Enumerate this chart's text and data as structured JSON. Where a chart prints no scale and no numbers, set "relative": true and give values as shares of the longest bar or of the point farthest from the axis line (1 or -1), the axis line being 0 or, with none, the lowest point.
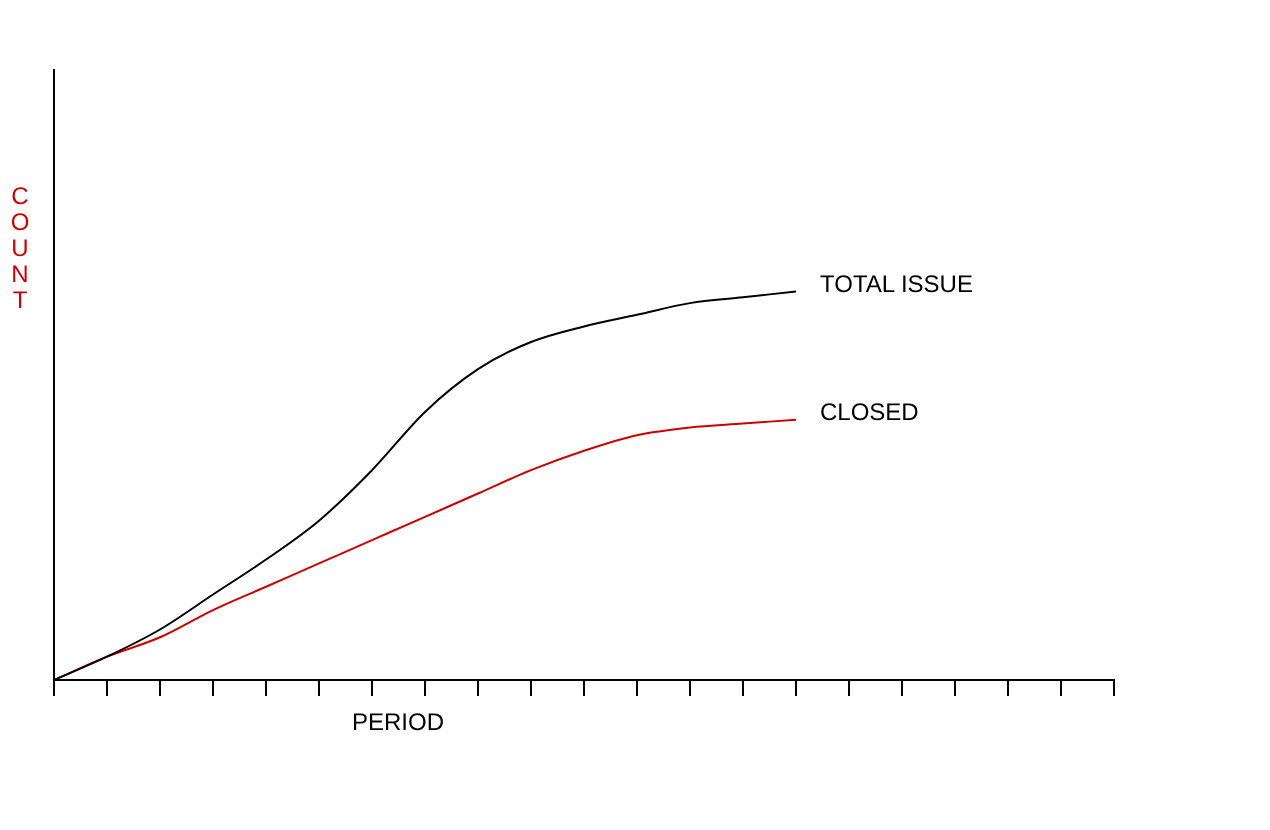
{
  "chart_data": {
    "type": "line",
    "xlabel": "PERIOD",
    "ylabel": "COUNT",
    "relative": true,
    "grid": false,
    "legend": false,
    "marker": "none",
    "tick_labels": false,
    "categories": [
      null,
      null,
      null,
      null,
      null,
      null,
      null,
      null,
      null,
      null,
      null,
      null,
      null,
      null,
      null,
      null,
      null,
      null,
      null,
      null,
      null
    ],
    "series": [
      {
        "name": "TOTAL ISSUE",
        "color": "#000000",
        "values": [
          0,
          0.06,
          0.13,
          0.22,
          0.31,
          0.41,
          0.54,
          0.69,
          0.8,
          0.87,
          0.91,
          0.94,
          0.97,
          0.985,
          1,
          null,
          null,
          null,
          null,
          null,
          null
        ]
      },
      {
        "name": "CLOSED",
        "color": "#cc0000",
        "values": [
          0,
          0.06,
          0.11,
          0.18,
          0.24,
          0.3,
          0.36,
          0.42,
          0.48,
          0.54,
          0.59,
          0.63,
          0.65,
          0.66,
          0.67,
          null,
          null,
          null,
          null,
          null,
          null
        ]
      }
    ]
  }
}
